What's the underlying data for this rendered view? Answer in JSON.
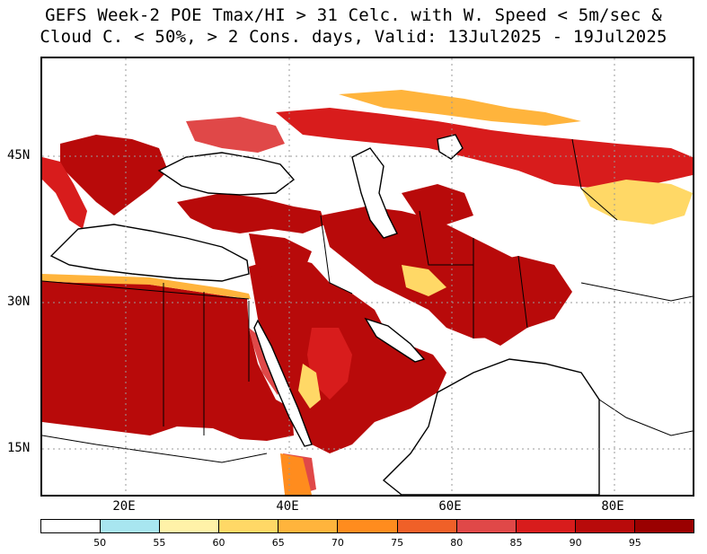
{
  "title": {
    "line1": "GEFS Week-2 POE Tmax/HI > 31 Celc. with W. Speed < 5m/sec &",
    "line2": "Cloud C. < 50%, > 2 Cons. days, Valid: 13Jul2025 - 19Jul2025"
  },
  "axes": {
    "lon_ticks": [
      "20E",
      "40E",
      "60E",
      "80E"
    ],
    "lat_ticks": [
      "45N",
      "30N",
      "15N"
    ]
  },
  "colorbar": {
    "colors": [
      "#ffffff",
      "#a8e6f0",
      "#fff2a8",
      "#ffd866",
      "#ffb43c",
      "#ff8c1e",
      "#f06028",
      "#e04848",
      "#d81c1c",
      "#b80a0a",
      "#9a0000"
    ],
    "labels": [
      "50",
      "55",
      "60",
      "65",
      "70",
      "75",
      "80",
      "85",
      "90",
      "95"
    ]
  },
  "map": {
    "region": "Middle East / Central Asia",
    "lon_range": [
      10,
      90
    ],
    "lat_range": [
      10,
      55
    ],
    "grid": "dotted"
  }
}
